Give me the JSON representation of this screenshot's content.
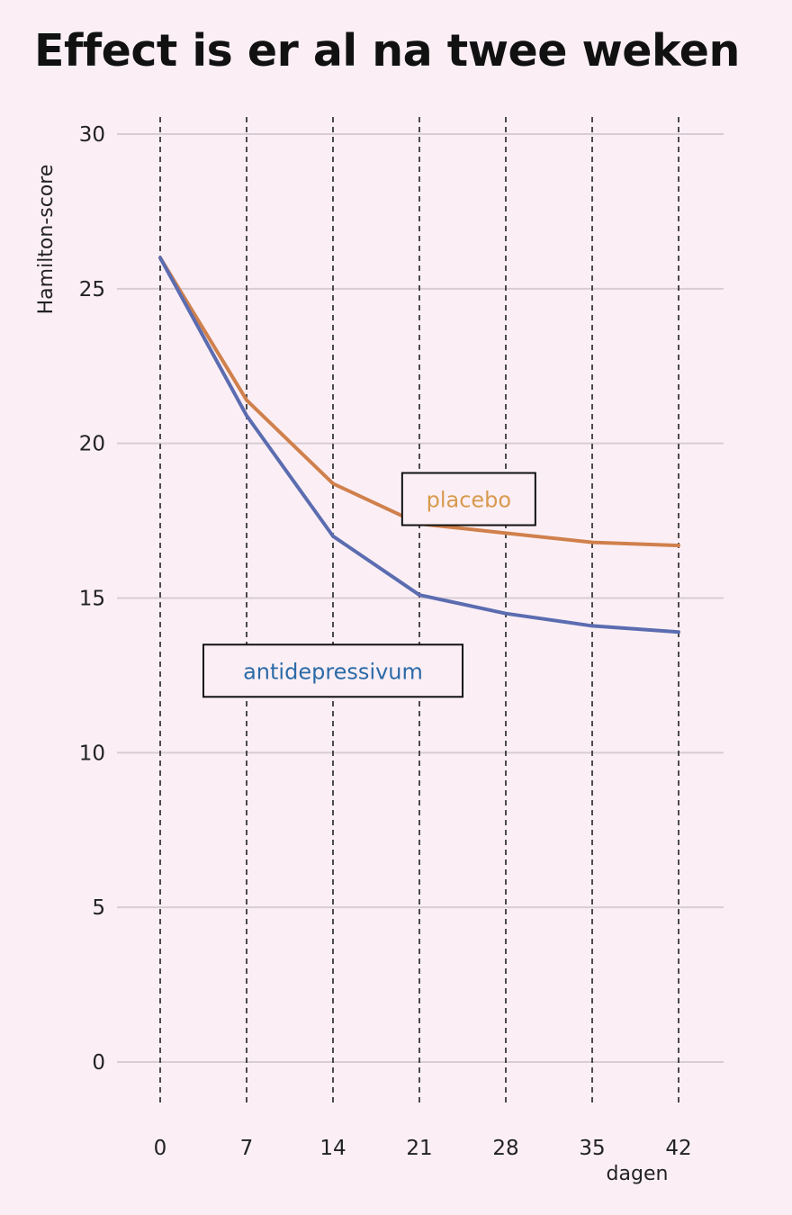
{
  "chart_data": {
    "type": "line",
    "title": "Effect is er al na twee weken",
    "xlabel": "dagen",
    "ylabel": "Hamilton-score",
    "x": [
      0,
      7,
      14,
      21,
      28,
      35,
      42
    ],
    "xlim": [
      0,
      42
    ],
    "ylim": [
      0,
      30
    ],
    "yticks": [
      0,
      5,
      10,
      15,
      20,
      25,
      30
    ],
    "grid": true,
    "series": [
      {
        "name": "placebo",
        "color": "#d0804c",
        "label_color": "#d89a4e",
        "values": [
          26.0,
          21.4,
          18.7,
          17.4,
          17.1,
          16.8,
          16.7
        ]
      },
      {
        "name": "antidepressivum",
        "color": "#5b6cb0",
        "label_color": "#2b6aa8",
        "values": [
          26.0,
          20.9,
          17.0,
          15.1,
          14.5,
          14.1,
          13.9
        ]
      }
    ]
  }
}
